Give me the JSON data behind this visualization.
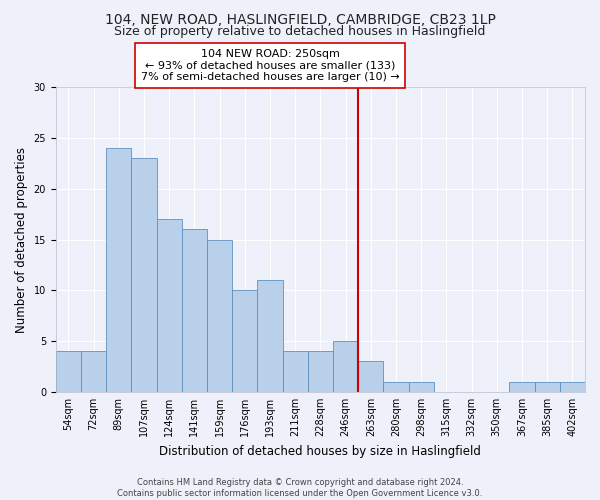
{
  "title": "104, NEW ROAD, HASLINGFIELD, CAMBRIDGE, CB23 1LP",
  "subtitle": "Size of property relative to detached houses in Haslingfield",
  "xlabel": "Distribution of detached houses by size in Haslingfield",
  "ylabel": "Number of detached properties",
  "categories": [
    "54sqm",
    "72sqm",
    "89sqm",
    "107sqm",
    "124sqm",
    "141sqm",
    "159sqm",
    "176sqm",
    "193sqm",
    "211sqm",
    "228sqm",
    "246sqm",
    "263sqm",
    "280sqm",
    "298sqm",
    "315sqm",
    "332sqm",
    "350sqm",
    "367sqm",
    "385sqm",
    "402sqm"
  ],
  "values": [
    4,
    4,
    24,
    23,
    17,
    16,
    15,
    10,
    11,
    4,
    4,
    5,
    3,
    1,
    1,
    0,
    0,
    0,
    1,
    1,
    1
  ],
  "bar_color": "#b8d0ea",
  "bar_edge_color": "#6090c0",
  "reference_line_x": 11.5,
  "reference_line_color": "#cc0000",
  "annotation_text": "104 NEW ROAD: 250sqm\n← 93% of detached houses are smaller (133)\n7% of semi-detached houses are larger (10) →",
  "annotation_box_color": "#ffffff",
  "annotation_box_edge_color": "#cc0000",
  "ylim": [
    0,
    30
  ],
  "yticks": [
    0,
    5,
    10,
    15,
    20,
    25,
    30
  ],
  "background_color": "#eef1fa",
  "grid_color": "#ffffff",
  "footer": "Contains HM Land Registry data © Crown copyright and database right 2024.\nContains public sector information licensed under the Open Government Licence v3.0.",
  "title_fontsize": 10,
  "subtitle_fontsize": 9,
  "xlabel_fontsize": 8.5,
  "ylabel_fontsize": 8.5,
  "tick_fontsize": 7,
  "annotation_fontsize": 8,
  "footer_fontsize": 6
}
